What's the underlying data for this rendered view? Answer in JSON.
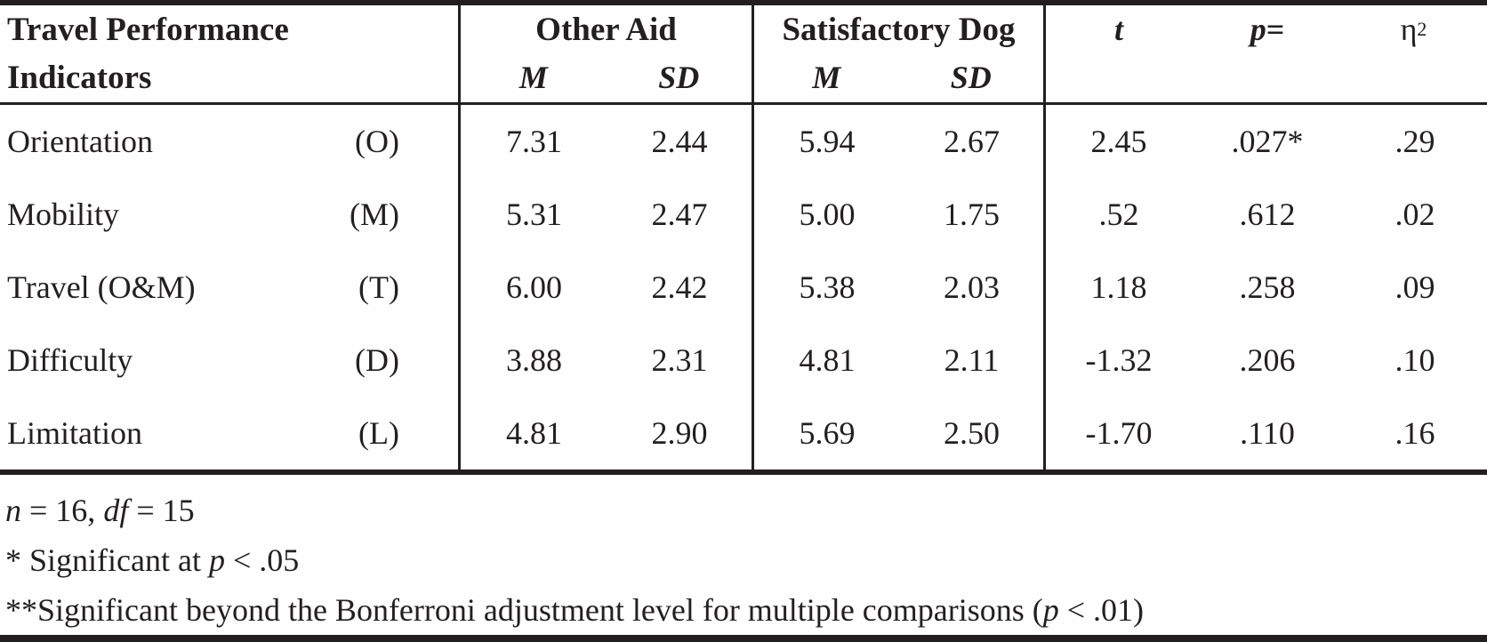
{
  "colors": {
    "text": "#231f20",
    "background": "#fefefe",
    "rule": "#221e1f"
  },
  "table": {
    "header": {
      "col1_line1": "Travel Performance",
      "col1_line2": "Indicators",
      "group_other_aid": "Other Aid",
      "group_satisfactory_dog": "Satisfactory Dog",
      "mean_label": "M",
      "sd_label": "SD",
      "t_label": "t",
      "p_label_italic": "p",
      "p_label_eq": " =",
      "eta_label": "η",
      "eta_sup": "2"
    },
    "rows": [
      {
        "name": "Orientation",
        "code": "(O)",
        "oa_m": "7.31",
        "oa_sd": "2.44",
        "sd_m": "5.94",
        "sd_sd": "2.67",
        "t": "2.45",
        "p": ".027*",
        "eta": ".29"
      },
      {
        "name": "Mobility",
        "code": "(M)",
        "oa_m": "5.31",
        "oa_sd": "2.47",
        "sd_m": "5.00",
        "sd_sd": "1.75",
        "t": ".52",
        "p": ".612",
        "eta": ".02"
      },
      {
        "name": "Travel (O&M)",
        "code": "(T)",
        "oa_m": "6.00",
        "oa_sd": "2.42",
        "sd_m": "5.38",
        "sd_sd": "2.03",
        "t": "1.18",
        "p": ".258",
        "eta": ".09"
      },
      {
        "name": "Difficulty",
        "code": "(D)",
        "oa_m": "3.88",
        "oa_sd": "2.31",
        "sd_m": "4.81",
        "sd_sd": "2.11",
        "t": "-1.32",
        "p": ".206",
        "eta": ".10"
      },
      {
        "name": "Limitation",
        "code": "(L)",
        "oa_m": "4.81",
        "oa_sd": "2.90",
        "sd_m": "5.69",
        "sd_sd": "2.50",
        "t": "-1.70",
        "p": ".110",
        "eta": ".16"
      }
    ]
  },
  "footnotes": {
    "sample": {
      "n_italic": "n",
      "mid": " = 16, ",
      "df_italic": "df",
      "end": " = 15"
    },
    "sig1": {
      "pre": "* Significant at ",
      "p_italic": "p",
      "post": " < .05"
    },
    "sig2": {
      "pre": "**Significant beyond the Bonferroni adjustment level for multiple comparisons (",
      "p_italic": "p",
      "post": " < .01)"
    }
  }
}
